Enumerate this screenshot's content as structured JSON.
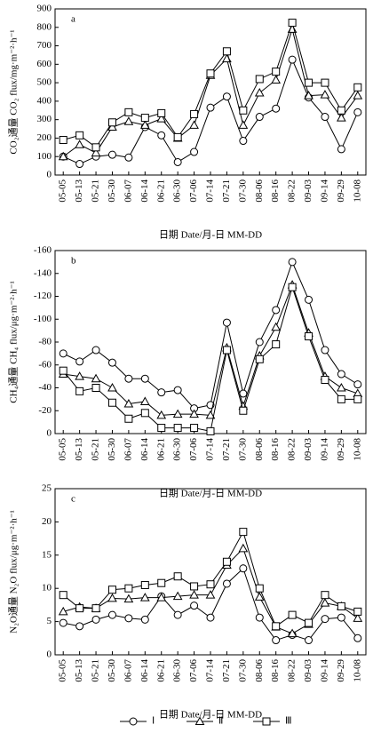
{
  "chart_data": [
    {
      "type": "line",
      "label": "a",
      "ylabel": "CO₂通量 CO₂ flux/mg·m⁻²·h⁻¹",
      "xlabel": "日期 Date/月-日 MM-DD",
      "categories": [
        "05-05",
        "05-13",
        "05-21",
        "05-30",
        "06-07",
        "06-14",
        "06-21",
        "06-30",
        "07-06",
        "07-14",
        "07-21",
        "07-30",
        "08-06",
        "08-16",
        "08-22",
        "09-03",
        "09-14",
        "09-29",
        "10-08"
      ],
      "ylim": [
        0,
        900
      ],
      "yticks": [
        0,
        100,
        200,
        300,
        400,
        500,
        600,
        700,
        800,
        900
      ],
      "grid": false,
      "series": [
        {
          "name": "Ⅰ",
          "marker": "circle",
          "color": "#000000",
          "values": [
            100,
            60,
            100,
            110,
            95,
            260,
            215,
            70,
            125,
            365,
            425,
            185,
            315,
            360,
            625,
            420,
            315,
            140,
            340
          ]
        },
        {
          "name": "Ⅱ",
          "marker": "triangle",
          "color": "#000000",
          "values": [
            100,
            165,
            120,
            260,
            290,
            270,
            305,
            200,
            270,
            540,
            630,
            270,
            445,
            515,
            790,
            430,
            435,
            310,
            430
          ]
        },
        {
          "name": "Ⅲ",
          "marker": "square",
          "color": "#000000",
          "values": [
            190,
            215,
            150,
            285,
            340,
            310,
            335,
            205,
            330,
            550,
            670,
            350,
            520,
            560,
            825,
            500,
            500,
            350,
            475
          ]
        }
      ]
    },
    {
      "type": "line",
      "label": "b",
      "ylabel": "CH₄通量 CH₄ flux/μg·m⁻²·h⁻¹",
      "xlabel": "日期 Date/月-日 MM-DD",
      "categories": [
        "05-05",
        "05-13",
        "05-21",
        "05-30",
        "06-07",
        "06-14",
        "06-21",
        "06-30",
        "07-06",
        "07-14",
        "07-21",
        "07-30",
        "08-06",
        "08-16",
        "08-22",
        "09-03",
        "09-14",
        "09-29",
        "10-08"
      ],
      "ylim": [
        0,
        -160
      ],
      "yticks": [
        0,
        -20,
        -40,
        -60,
        -80,
        -100,
        -120,
        -140,
        -160
      ],
      "grid": false,
      "series": [
        {
          "name": "Ⅰ",
          "marker": "circle",
          "color": "#000000",
          "values": [
            -70,
            -63,
            -73,
            -62,
            -48,
            -48,
            -36,
            -38,
            -22,
            -25,
            -97,
            -35,
            -80,
            -108,
            -150,
            -117,
            -73,
            -52,
            -43
          ]
        },
        {
          "name": "Ⅱ",
          "marker": "triangle",
          "color": "#000000",
          "values": [
            -52,
            -50,
            -48,
            -40,
            -26,
            -28,
            -16,
            -17,
            -17,
            -16,
            -75,
            -24,
            -68,
            -93,
            -130,
            -88,
            -50,
            -40,
            -35
          ]
        },
        {
          "name": "Ⅲ",
          "marker": "square",
          "color": "#000000",
          "values": [
            -55,
            -37,
            -40,
            -27,
            -13,
            -18,
            -5,
            -5,
            -5,
            -2,
            -73,
            -20,
            -65,
            -78,
            -128,
            -85,
            -47,
            -30,
            -30
          ]
        }
      ]
    },
    {
      "type": "line",
      "label": "c",
      "ylabel": "N₂O通量 N₂O flux/μg·m⁻²·h⁻¹",
      "xlabel": "日期 Date/月-日 MM-DD",
      "categories": [
        "05-05",
        "05-13",
        "05-21",
        "05-30",
        "06-07",
        "06-14",
        "06-21",
        "06-30",
        "07-06",
        "07-14",
        "07-21",
        "07-30",
        "08-06",
        "08-16",
        "08-22",
        "09-03",
        "09-14",
        "09-29",
        "10-08"
      ],
      "ylim": [
        0,
        25
      ],
      "yticks": [
        0,
        5,
        10,
        15,
        20,
        25
      ],
      "grid": false,
      "legend": "bottom",
      "series": [
        {
          "name": "Ⅰ",
          "marker": "circle",
          "color": "#000000",
          "values": [
            4.8,
            4.3,
            5.3,
            6.0,
            5.5,
            5.3,
            8.8,
            6.0,
            7.4,
            5.6,
            10.7,
            13.0,
            5.6,
            2.2,
            3.0,
            2.2,
            5.4,
            5.6,
            2.5
          ]
        },
        {
          "name": "Ⅱ",
          "marker": "triangle",
          "color": "#000000",
          "values": [
            6.5,
            7.2,
            7.0,
            8.5,
            8.4,
            8.6,
            8.6,
            8.8,
            9.0,
            9.0,
            13.5,
            16.0,
            8.7,
            4.2,
            3.2,
            4.6,
            7.8,
            7.3,
            5.5
          ]
        },
        {
          "name": "Ⅲ",
          "marker": "square",
          "color": "#000000",
          "values": [
            9.0,
            7.0,
            7.0,
            9.8,
            10.0,
            10.5,
            10.8,
            11.8,
            10.3,
            10.6,
            14.0,
            18.5,
            10.0,
            4.3,
            6.0,
            4.8,
            9.0,
            7.3,
            6.5
          ]
        }
      ]
    }
  ]
}
